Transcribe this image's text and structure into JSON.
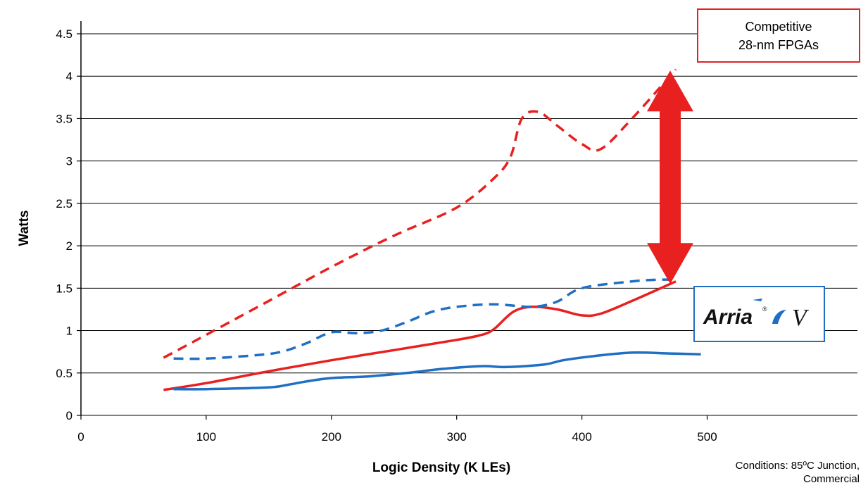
{
  "chart_data": {
    "type": "line",
    "xlabel": "Logic Density (K LEs)",
    "ylabel": "Watts",
    "xlim": [
      0,
      620
    ],
    "ylim": [
      0,
      4.5
    ],
    "x_ticks": [
      0,
      100,
      200,
      300,
      400,
      500
    ],
    "y_ticks": [
      0,
      0.5,
      1,
      1.5,
      2,
      2.5,
      3,
      3.5,
      4,
      4.5
    ],
    "y_tick_labels": [
      "0",
      "0.5",
      "1",
      "1.5",
      "2",
      "2.5",
      "3",
      "3.5",
      "4",
      "4.5"
    ],
    "grid": "horizontal",
    "series": [
      {
        "color": "#e8201f",
        "style": "dashed",
        "x": [
          66,
          100,
          150,
          200,
          250,
          300,
          330,
          343,
          352,
          365,
          380,
          400,
          415,
          440,
          475
        ],
        "y": [
          0.68,
          0.95,
          1.35,
          1.75,
          2.12,
          2.45,
          2.8,
          3.05,
          3.5,
          3.58,
          3.42,
          3.2,
          3.14,
          3.5,
          4.08
        ]
      },
      {
        "color": "#e8201f",
        "style": "solid",
        "x": [
          66,
          100,
          150,
          200,
          250,
          300,
          320,
          330,
          345,
          360,
          380,
          400,
          415,
          440,
          475
        ],
        "y": [
          0.3,
          0.38,
          0.52,
          0.65,
          0.77,
          0.89,
          0.95,
          1.02,
          1.22,
          1.28,
          1.25,
          1.18,
          1.2,
          1.35,
          1.58
        ]
      },
      {
        "color": "#1f6fc4",
        "style": "dashed",
        "x": [
          74,
          100,
          140,
          160,
          180,
          200,
          220,
          240,
          260,
          280,
          300,
          330,
          360,
          380,
          400,
          440,
          460,
          475
        ],
        "y": [
          0.67,
          0.67,
          0.71,
          0.75,
          0.85,
          0.98,
          0.97,
          1.0,
          1.1,
          1.22,
          1.28,
          1.31,
          1.28,
          1.34,
          1.5,
          1.58,
          1.6,
          1.6
        ]
      },
      {
        "color": "#1f6fc4",
        "style": "solid",
        "x": [
          74,
          100,
          150,
          165,
          180,
          200,
          230,
          260,
          290,
          320,
          340,
          370,
          385,
          410,
          440,
          470,
          495
        ],
        "y": [
          0.31,
          0.31,
          0.33,
          0.36,
          0.4,
          0.44,
          0.46,
          0.5,
          0.55,
          0.58,
          0.57,
          0.6,
          0.65,
          0.7,
          0.74,
          0.73,
          0.72
        ]
      }
    ],
    "annotations": {
      "competitor_label_line1": "Competitive",
      "competitor_label_line2": "28-nm FPGAs",
      "logo_text": "Arria",
      "logo_mark": "V",
      "logo_superscript": "®",
      "note_line1": "Conditions: 85ºC Junction,",
      "note_line2": "Commercial",
      "arrow": {
        "x": 475,
        "y_from": 1.6,
        "y_to": 3.9,
        "color": "#e8201f"
      }
    }
  }
}
